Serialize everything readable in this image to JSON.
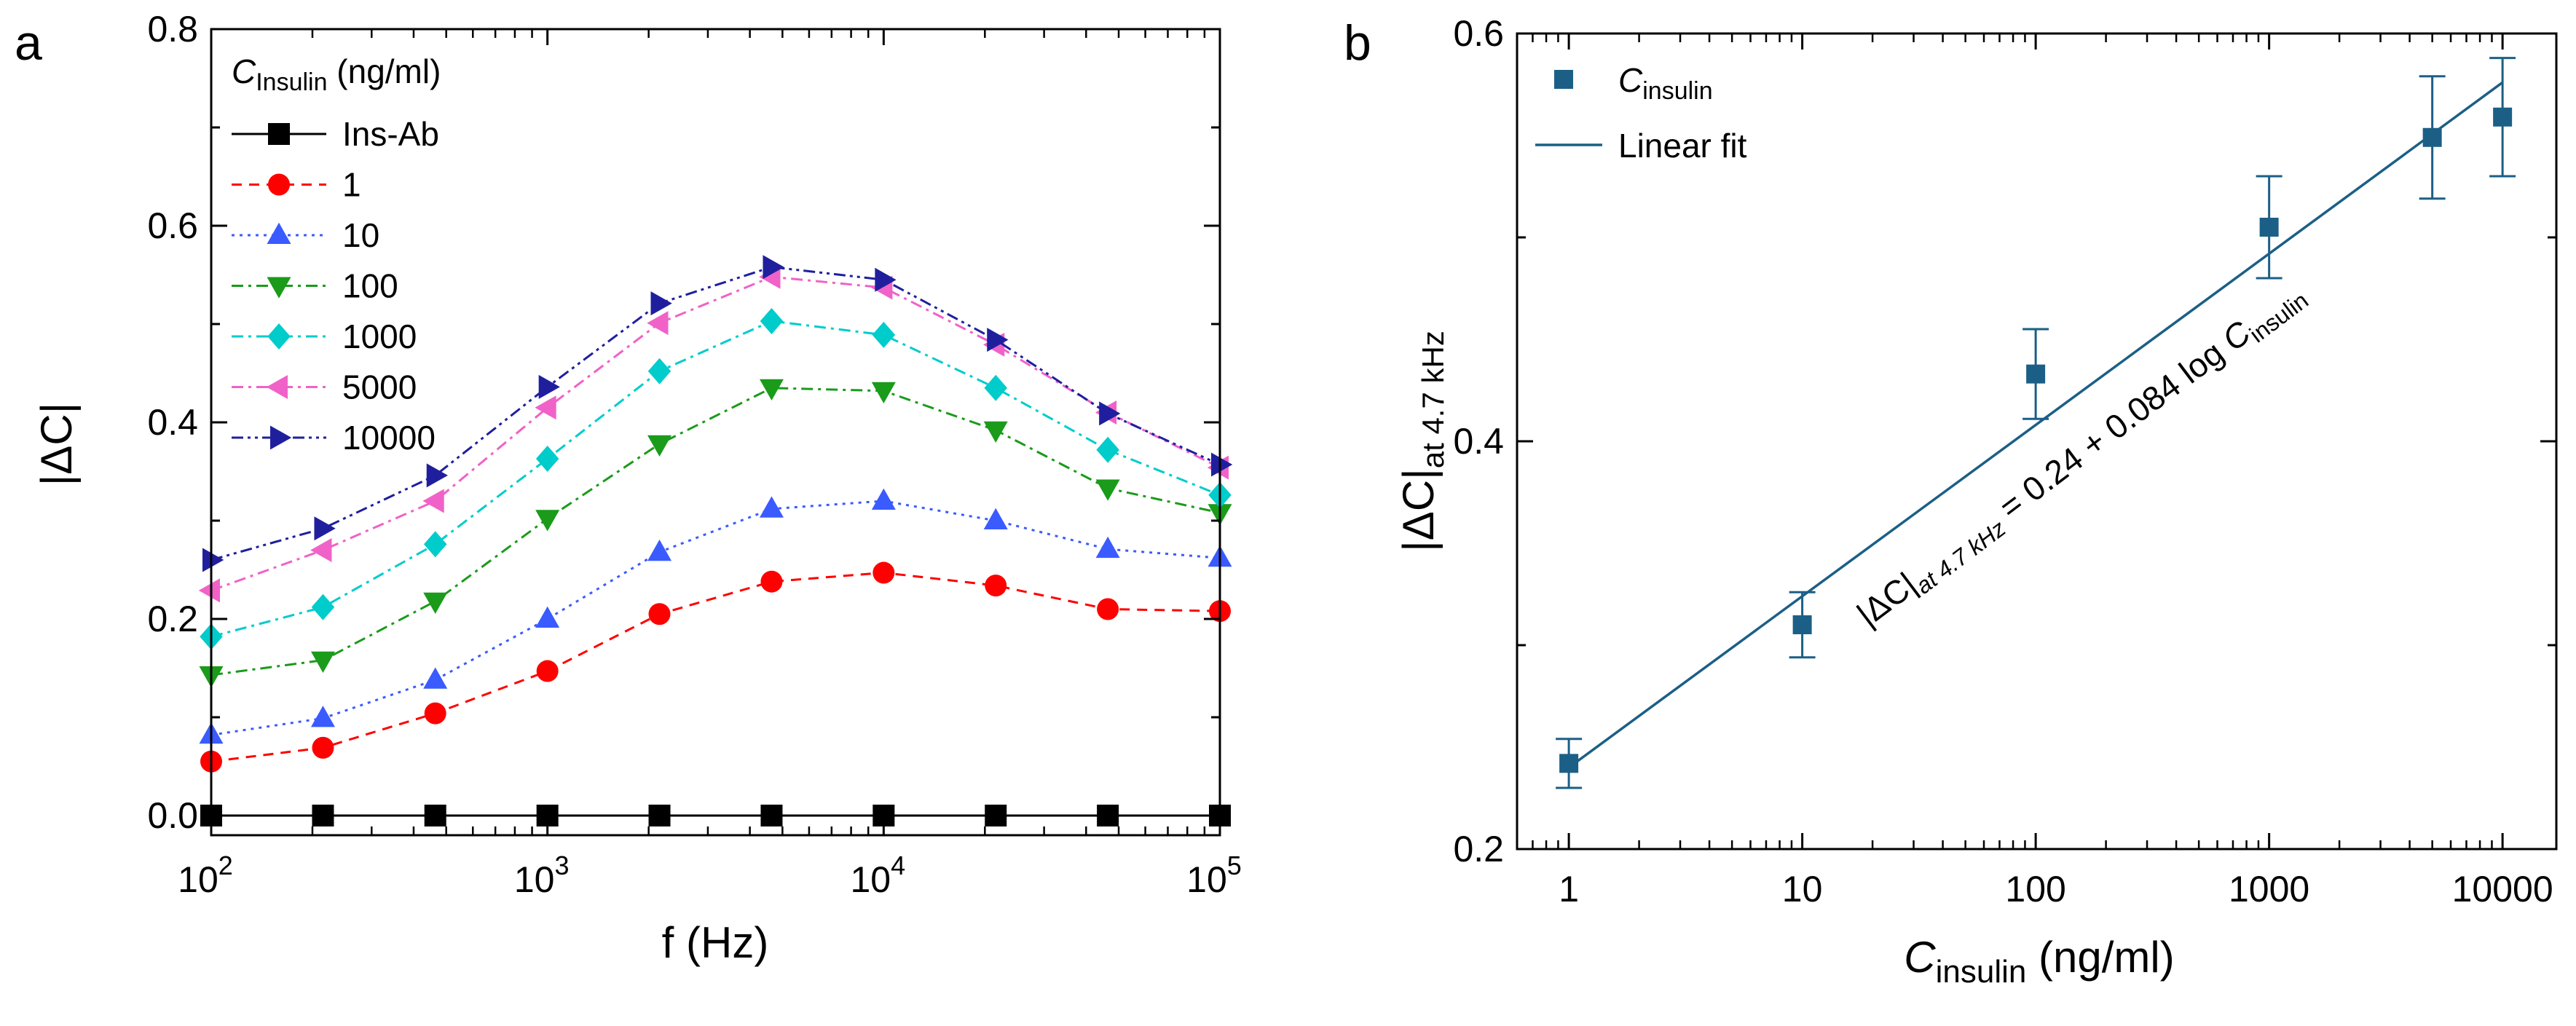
{
  "colors": {
    "Ins-Ab": "#000000",
    "1": "#ff0000",
    "10": "#3a5bff",
    "100": "#1a9b1a",
    "1000": "#00cccc",
    "5000": "#f062c8",
    "10000": "#1f1f9e",
    "fit": "#1b5f86"
  },
  "chart_data": [
    {
      "panel": "a",
      "type": "line",
      "xlabel": "f (Hz)",
      "ylabel": "|ΔC|",
      "xscale": "log",
      "xlim": [
        100,
        100000
      ],
      "ylim": [
        -0.02,
        0.8
      ],
      "xticks": [
        {
          "value": 100,
          "base": "10",
          "exp": "2"
        },
        {
          "value": 1000,
          "base": "10",
          "exp": "3"
        },
        {
          "value": 10000,
          "base": "10",
          "exp": "4"
        },
        {
          "value": 100000,
          "base": "10",
          "exp": "5"
        }
      ],
      "yticks": [
        {
          "value": 0.0,
          "label": "0.0"
        },
        {
          "value": 0.2,
          "label": "0.2"
        },
        {
          "value": 0.4,
          "label": "0.4"
        },
        {
          "value": 0.6,
          "label": "0.6"
        },
        {
          "value": 0.8,
          "label": "0.8"
        }
      ],
      "legend_title": {
        "symbol": "C",
        "sub": "Insulin",
        "unit": " (ng/ml)"
      },
      "legend_position": "top-left",
      "x": [
        100,
        215,
        464,
        1000,
        2154,
        4642,
        10000,
        21544,
        46416,
        100000
      ],
      "series": [
        {
          "name": "Ins-Ab",
          "marker": "square",
          "dash": "solid",
          "values": [
            0,
            0,
            0,
            0,
            0,
            0,
            0,
            0,
            0,
            0
          ]
        },
        {
          "name": "1",
          "marker": "circle",
          "dash": "dashed",
          "values": [
            0.055,
            0.069,
            0.104,
            0.147,
            0.205,
            0.238,
            0.247,
            0.234,
            0.21,
            0.208
          ]
        },
        {
          "name": "10",
          "marker": "triangle-up",
          "dash": "dotted",
          "values": [
            0.082,
            0.099,
            0.138,
            0.2,
            0.268,
            0.312,
            0.32,
            0.3,
            0.271,
            0.262
          ]
        },
        {
          "name": "100",
          "marker": "triangle-down",
          "dash": "dashdot",
          "values": [
            0.143,
            0.158,
            0.218,
            0.302,
            0.378,
            0.435,
            0.432,
            0.392,
            0.333,
            0.308
          ]
        },
        {
          "name": "1000",
          "marker": "diamond",
          "dash": "dashdot",
          "values": [
            0.182,
            0.212,
            0.276,
            0.363,
            0.452,
            0.503,
            0.489,
            0.435,
            0.372,
            0.326
          ]
        },
        {
          "name": "5000",
          "marker": "triangle-left",
          "dash": "dashdot",
          "values": [
            0.229,
            0.27,
            0.32,
            0.415,
            0.501,
            0.548,
            0.537,
            0.479,
            0.41,
            0.354
          ]
        },
        {
          "name": "10000",
          "marker": "triangle-right",
          "dash": "dashdotdot",
          "values": [
            0.26,
            0.292,
            0.346,
            0.436,
            0.521,
            0.558,
            0.545,
            0.484,
            0.409,
            0.357
          ]
        }
      ]
    },
    {
      "panel": "b",
      "type": "scatter",
      "xlabel": {
        "symbol": "C",
        "sub": "insulin",
        "unit": " (ng/ml)"
      },
      "ylabel": {
        "text": "|ΔC|",
        "sub": "at 4.7 kHz"
      },
      "xscale": "log",
      "xlim": [
        0.6,
        17000
      ],
      "ylim": [
        0.2,
        0.6
      ],
      "xticks": [
        {
          "value": 1,
          "label": "1"
        },
        {
          "value": 10,
          "label": "10"
        },
        {
          "value": 100,
          "label": "100"
        },
        {
          "value": 1000,
          "label": "1000"
        },
        {
          "value": 10000,
          "label": "10000"
        }
      ],
      "yticks": [
        {
          "value": 0.2,
          "label": "0.2"
        },
        {
          "value": 0.4,
          "label": "0.4"
        },
        {
          "value": 0.6,
          "label": "0.6"
        }
      ],
      "legend": [
        {
          "symbol": "C",
          "sub": "insulin",
          "kind": "marker"
        },
        {
          "text": "Linear fit",
          "kind": "line"
        }
      ],
      "legend_position": "top-left",
      "points": {
        "x": [
          1,
          10,
          100,
          1000,
          5000,
          10000
        ],
        "y": [
          0.242,
          0.31,
          0.433,
          0.505,
          0.549,
          0.559
        ],
        "err": [
          0.012,
          0.016,
          0.022,
          0.025,
          0.03,
          0.029
        ]
      },
      "fit": {
        "intercept": 0.24,
        "slope": 0.084,
        "x_range": [
          1,
          10000
        ]
      },
      "annotation": {
        "pre": "|ΔC|",
        "sub": "at 4.7 kHz",
        "mid": " = 0.24 + 0.084 log ",
        "sym": "C",
        "sub2": "insulin"
      }
    }
  ]
}
